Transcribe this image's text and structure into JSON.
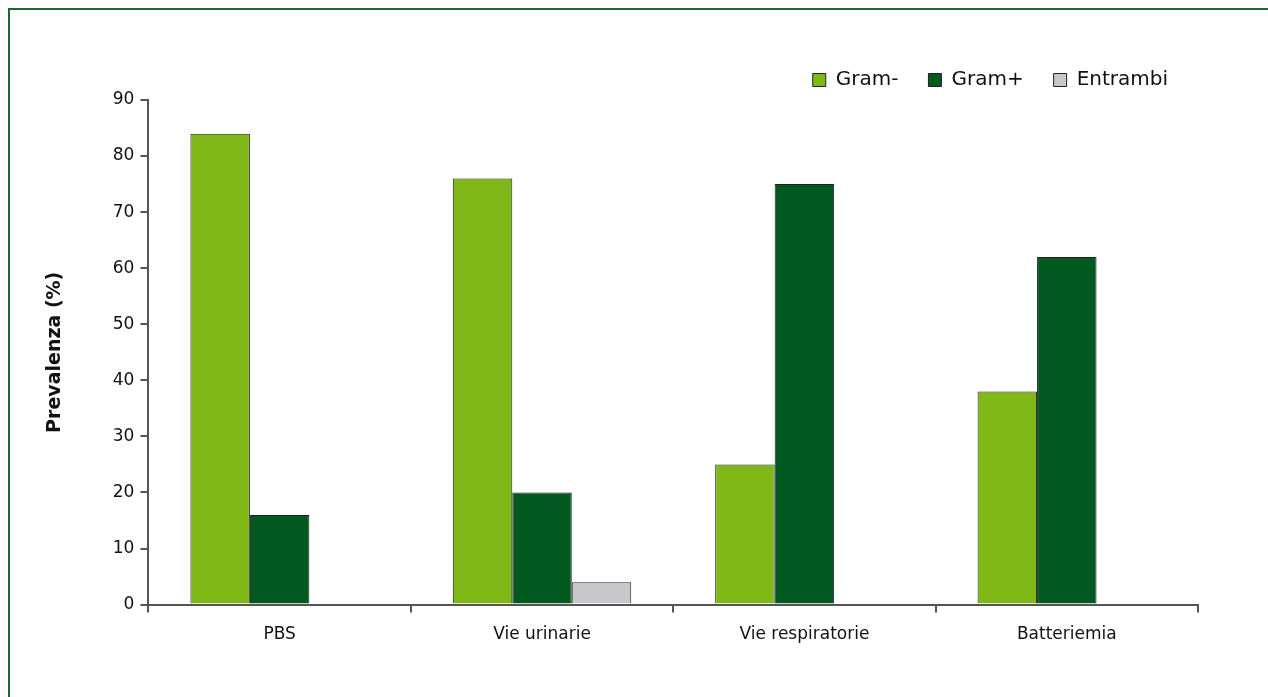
{
  "chart_data": {
    "type": "bar",
    "ylabel": "Prevalenza (%)",
    "categories": [
      "PBS",
      "Vie urinarie",
      "Vie respiratorie",
      "Batteriemia"
    ],
    "series": [
      {
        "name": "Gram-",
        "color": "#7fb817",
        "values": [
          84,
          76,
          25,
          38
        ]
      },
      {
        "name": "Gram+",
        "color": "#005a1f",
        "values": [
          16,
          20,
          75,
          62
        ]
      },
      {
        "name": "Entrambi",
        "color": "#c8c8cc",
        "values": [
          null,
          4,
          null,
          null
        ]
      }
    ],
    "ylim": [
      0,
      90
    ],
    "yticks": [
      0,
      10,
      20,
      30,
      40,
      50,
      60,
      70,
      80,
      90
    ],
    "grid": false,
    "legend": "top right"
  }
}
